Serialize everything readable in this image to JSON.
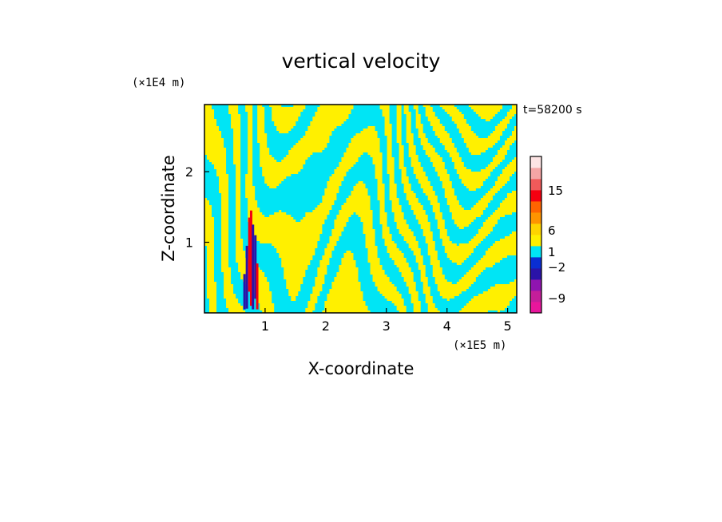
{
  "chart_data": {
    "type": "heatmap",
    "title": "vertical velocity",
    "xlabel": "X-coordinate",
    "ylabel": "Z-coordinate",
    "x_unit": "(×1E5 m)",
    "y_unit": "(×1E4 m)",
    "time_label": "t=58200 s",
    "xlim": [
      0,
      5.15
    ],
    "ylim": [
      0,
      2.95
    ],
    "x_ticks": [
      1,
      2,
      3,
      4,
      5
    ],
    "y_ticks": [
      1,
      2
    ],
    "colorbar": {
      "labels": [
        15,
        6,
        1,
        -2,
        -9
      ],
      "colors_bottom_to_top": [
        "#e8169c",
        "#c41e9a",
        "#9014b0",
        "#2a13a8",
        "#0a2ed2",
        "#00e5f5",
        "#fff000",
        "#ffd400",
        "#ff9400",
        "#ff6400",
        "#f40010",
        "#f05a5a",
        "#f5a5a5",
        "#fde4e4"
      ]
    },
    "field": {
      "dominant_positive": "#fff000",
      "dominant_negative": "#00e5f5",
      "strong_positive": "#f40010",
      "strong_negative": "#2a13a8",
      "strong_region_x": [
        0.6,
        0.9
      ],
      "strong_region_z": [
        0.05,
        1.45
      ]
    }
  }
}
